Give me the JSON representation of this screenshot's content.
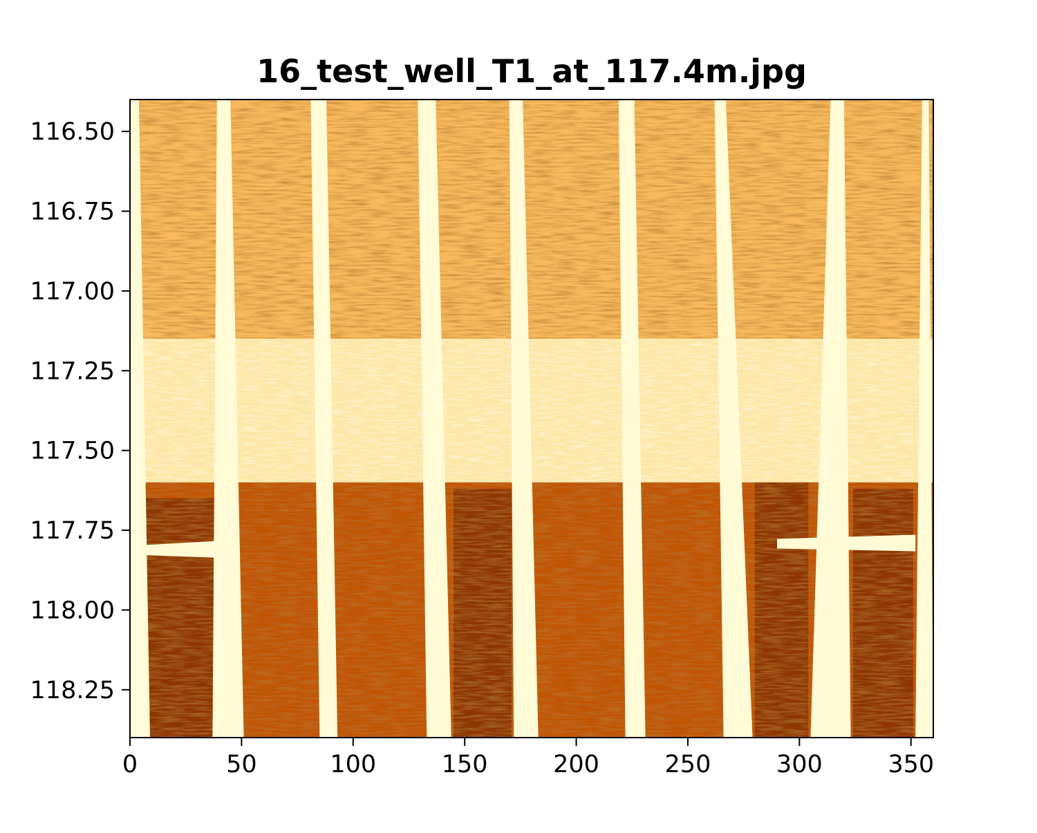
{
  "chart_data": {
    "type": "heatmap",
    "title": "16_test_well_T1_at_117.4m.jpg",
    "xlabel": "",
    "ylabel": "",
    "xlim": [
      0,
      360
    ],
    "ylim": [
      118.4,
      116.4
    ],
    "y_inverted": true,
    "grid": false,
    "colormap": "YlOrBr (light = high, dark = low)",
    "x_ticks": [
      0,
      50,
      100,
      150,
      200,
      250,
      300,
      350
    ],
    "x_tick_labels": [
      "0",
      "50",
      "100",
      "150",
      "200",
      "250",
      "300",
      "350"
    ],
    "y_ticks": [
      116.5,
      116.75,
      117.0,
      117.25,
      117.5,
      117.75,
      118.0,
      118.25
    ],
    "y_tick_labels": [
      "116.50",
      "116.75",
      "117.00",
      "117.25",
      "117.50",
      "117.75",
      "118.00",
      "118.25"
    ],
    "colors": {
      "background": "#ffffff",
      "lightest": "#fffbd6",
      "light": "#fde7a8",
      "mid_light": "#f7b95c",
      "mid": "#e07b17",
      "mid_dark": "#c25506",
      "dark": "#8e3604",
      "darkest": "#6b2702"
    },
    "bands": [
      {
        "from_depth": 116.4,
        "to_depth": 117.15,
        "tone": "mid_light",
        "texture": "streaky"
      },
      {
        "from_depth": 117.15,
        "to_depth": 117.6,
        "tone": "light",
        "texture": "smooth"
      },
      {
        "from_depth": 117.6,
        "to_depth": 118.4,
        "tone": "mid_dark",
        "texture": "mottled"
      }
    ],
    "vertical_stripes": [
      {
        "x_start": 0,
        "x_end": 4,
        "x_start_bottom": 0,
        "x_end_bottom": 9
      },
      {
        "x_start": 39,
        "x_end": 45,
        "x_start_bottom": 37,
        "x_end_bottom": 51
      },
      {
        "x_start": 81,
        "x_end": 88,
        "x_start_bottom": 85,
        "x_end_bottom": 93
      },
      {
        "x_start": 129,
        "x_end": 137,
        "x_start_bottom": 133,
        "x_end_bottom": 144
      },
      {
        "x_start": 170,
        "x_end": 176,
        "x_start_bottom": 172,
        "x_end_bottom": 183
      },
      {
        "x_start": 219,
        "x_end": 226,
        "x_start_bottom": 222,
        "x_end_bottom": 231
      },
      {
        "x_start": 262,
        "x_end": 267,
        "x_start_bottom": 266,
        "x_end_bottom": 279
      },
      {
        "x_start": 314,
        "x_end": 320,
        "x_start_bottom": 305,
        "x_end_bottom": 323
      },
      {
        "x_start": 355,
        "x_end": 358,
        "x_start_bottom": 352,
        "x_end_bottom": 360
      }
    ],
    "dark_regions": [
      {
        "x_start": 5,
        "x_end": 38,
        "from_depth": 117.65,
        "to_depth": 118.4
      },
      {
        "x_start": 145,
        "x_end": 171,
        "from_depth": 117.62,
        "to_depth": 118.4
      },
      {
        "x_start": 280,
        "x_end": 304,
        "from_depth": 117.6,
        "to_depth": 118.4
      },
      {
        "x_start": 324,
        "x_end": 351,
        "from_depth": 117.62,
        "to_depth": 118.4
      }
    ],
    "light_streaks": [
      {
        "x_start": 5,
        "x_end": 38,
        "depth": 117.81
      },
      {
        "x_start": 290,
        "x_end": 352,
        "depth": 117.79
      }
    ]
  }
}
